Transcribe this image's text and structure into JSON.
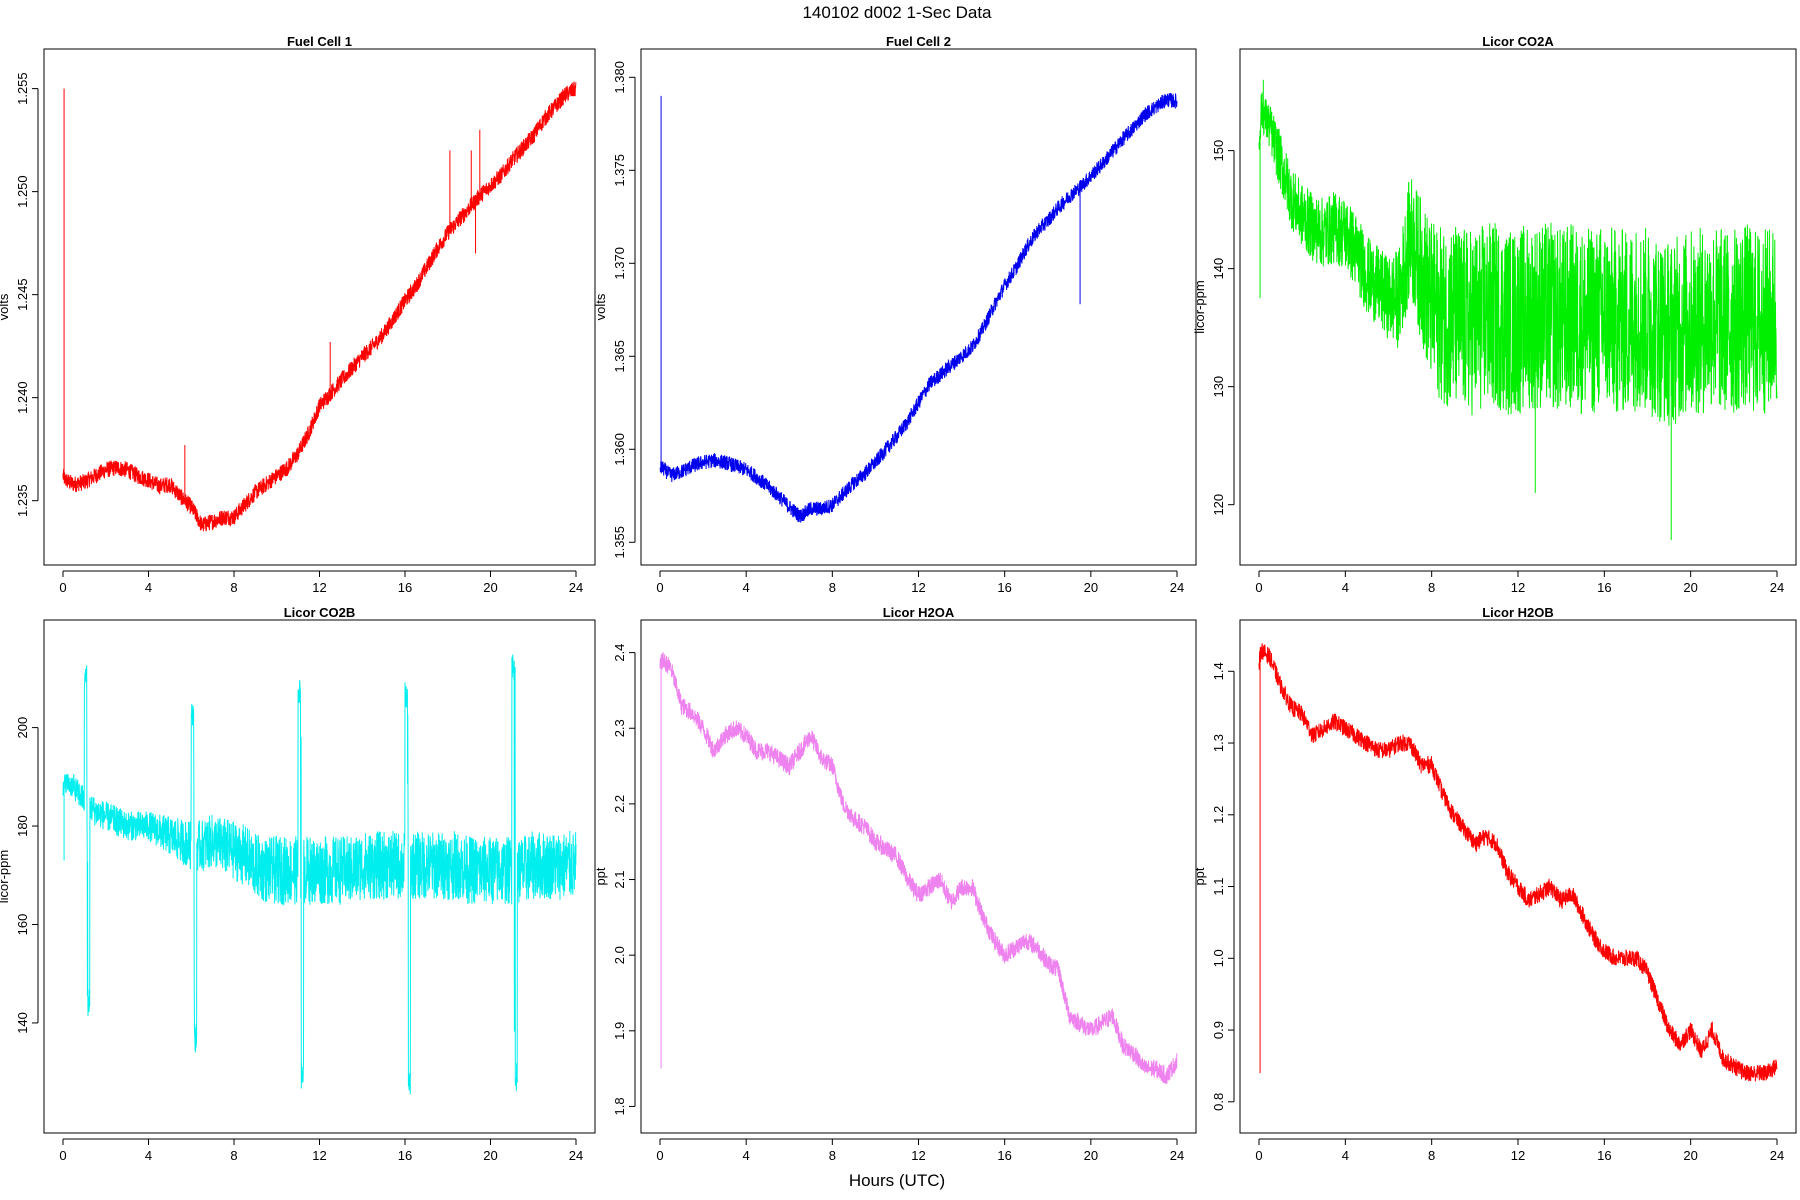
{
  "figure": {
    "title": "140102   d002   1-Sec Data",
    "xlabel": "Hours (UTC)"
  },
  "chart_data": [
    {
      "type": "line",
      "title": "Fuel Cell 1",
      "ylabel": "volts",
      "color": "#ff0000",
      "xlim": [
        0,
        24
      ],
      "ylim": [
        1.2328,
        1.256
      ],
      "xticks": [
        0,
        4,
        8,
        12,
        16,
        20,
        24
      ],
      "yticks": [
        1.235,
        1.24,
        1.245,
        1.25,
        1.255
      ],
      "ytick_labels": [
        "1.235",
        "1.240",
        "1.245",
        "1.250",
        "1.255"
      ],
      "x": [
        0,
        0.1,
        0.5,
        1,
        1.5,
        2,
        2.5,
        3,
        3.5,
        4,
        4.5,
        5,
        5.5,
        6,
        6.5,
        7,
        7.5,
        8,
        8.5,
        9,
        9.5,
        10,
        10.5,
        11,
        11.5,
        12,
        12.5,
        13,
        13.5,
        14,
        14.5,
        15,
        15.5,
        16,
        16.5,
        17,
        17.5,
        18,
        18.5,
        19,
        19.5,
        20,
        20.5,
        21,
        21.5,
        22,
        22.5,
        23,
        23.5,
        24
      ],
      "y": [
        1.2362,
        1.236,
        1.2358,
        1.2359,
        1.2362,
        1.2365,
        1.2366,
        1.2365,
        1.2362,
        1.236,
        1.2357,
        1.2358,
        1.2352,
        1.2347,
        1.2338,
        1.234,
        1.2342,
        1.2342,
        1.2348,
        1.2354,
        1.2358,
        1.2362,
        1.2366,
        1.2373,
        1.2383,
        1.2396,
        1.2402,
        1.2408,
        1.2414,
        1.242,
        1.2425,
        1.2431,
        1.2439,
        1.2447,
        1.2454,
        1.2463,
        1.2472,
        1.248,
        1.2486,
        1.2492,
        1.2498,
        1.2503,
        1.2508,
        1.2515,
        1.2521,
        1.2527,
        1.2535,
        1.2541,
        1.2547,
        1.255
      ],
      "noise": 0.0004,
      "spikes": [
        [
          0.05,
          1.255
        ],
        [
          5.7,
          1.2377
        ],
        [
          12.5,
          1.2427
        ],
        [
          18.1,
          1.252
        ],
        [
          19.1,
          1.252
        ],
        [
          19.5,
          1.253
        ],
        [
          19.3,
          1.247
        ]
      ]
    },
    {
      "type": "line",
      "title": "Fuel Cell 2",
      "ylabel": "volts",
      "color": "#0000ee",
      "xlim": [
        0,
        24
      ],
      "ylim": [
        1.3548,
        1.3805
      ],
      "xticks": [
        0,
        4,
        8,
        12,
        16,
        20,
        24
      ],
      "yticks": [
        1.355,
        1.36,
        1.365,
        1.37,
        1.375,
        1.38
      ],
      "ytick_labels": [
        "1.355",
        "1.360",
        "1.365",
        "1.370",
        "1.375",
        "1.380"
      ],
      "x": [
        0,
        0.1,
        0.5,
        1,
        1.5,
        2,
        2.5,
        3,
        3.5,
        4,
        4.5,
        5,
        5.5,
        6,
        6.5,
        7,
        7.5,
        8,
        8.5,
        9,
        9.5,
        10,
        10.5,
        11,
        11.5,
        12,
        12.5,
        13,
        13.5,
        14,
        14.5,
        15,
        15.5,
        16,
        16.5,
        17,
        17.5,
        18,
        18.5,
        19,
        19.5,
        20,
        20.5,
        21,
        21.5,
        22,
        22.5,
        23,
        23.5,
        24
      ],
      "y": [
        1.359,
        1.359,
        1.3586,
        1.3588,
        1.3591,
        1.3593,
        1.3594,
        1.3593,
        1.3591,
        1.3589,
        1.3585,
        1.358,
        1.3575,
        1.3569,
        1.3564,
        1.3568,
        1.3568,
        1.357,
        1.3576,
        1.3582,
        1.3587,
        1.3593,
        1.36,
        1.3607,
        1.3615,
        1.3625,
        1.3635,
        1.364,
        1.3645,
        1.365,
        1.3655,
        1.3665,
        1.3677,
        1.3688,
        1.3697,
        1.3708,
        1.3717,
        1.3723,
        1.373,
        1.3736,
        1.3741,
        1.3747,
        1.3753,
        1.376,
        1.3767,
        1.3773,
        1.378,
        1.3784,
        1.3788,
        1.3787
      ],
      "noise": 0.0004,
      "spikes": [
        [
          0.05,
          1.379
        ],
        [
          19.5,
          1.3678
        ]
      ]
    },
    {
      "type": "line",
      "title": "Licor CO2A",
      "ylabel": "licor-ppm",
      "color": "#00ee00",
      "xlim": [
        0,
        24
      ],
      "ylim": [
        116.5,
        157.0
      ],
      "xticks": [
        0,
        4,
        8,
        12,
        16,
        20,
        24
      ],
      "yticks": [
        120,
        130,
        140,
        150
      ],
      "ytick_labels": [
        "120",
        "130",
        "140",
        "150"
      ],
      "x": [
        0,
        0.1,
        0.5,
        1,
        1.5,
        2,
        2.5,
        3,
        3.5,
        4,
        4.5,
        5,
        5.5,
        6,
        6.5,
        7,
        7.5,
        8,
        8.5,
        9,
        9.5,
        10,
        10.5,
        11,
        11.5,
        12,
        12.5,
        13,
        13.5,
        14,
        14.5,
        15,
        15.5,
        16,
        16.5,
        17,
        17.5,
        18,
        18.5,
        19,
        19.5,
        20,
        20.5,
        21,
        21.5,
        22,
        22.5,
        23,
        23.5,
        24
      ],
      "y": [
        150,
        153.5,
        152,
        149,
        146,
        144.5,
        143.5,
        143,
        143.5,
        143,
        141.5,
        139.5,
        138.5,
        137.5,
        137.5,
        143,
        140,
        137,
        136,
        136,
        135.5,
        135.5,
        136,
        136,
        135.5,
        135.5,
        136,
        136,
        136,
        135.5,
        136,
        135.5,
        135.5,
        136,
        135.5,
        135.5,
        136,
        135.5,
        135,
        134.5,
        135,
        135.5,
        135.5,
        136,
        135.5,
        135.5,
        136,
        135.5,
        135.5,
        136
      ],
      "noise_profile": [
        [
          0,
          1.5
        ],
        [
          1,
          2.5
        ],
        [
          3,
          3
        ],
        [
          6,
          3.5
        ],
        [
          8,
          7
        ],
        [
          9,
          8
        ],
        [
          24,
          8
        ]
      ],
      "spikes": [
        [
          0.05,
          137.5
        ],
        [
          0.2,
          156
        ],
        [
          19.1,
          117
        ],
        [
          12.8,
          121
        ]
      ]
    },
    {
      "type": "line",
      "title": "Licor CO2B",
      "ylabel": "licor-ppm",
      "color": "#00eeee",
      "xlim": [
        0,
        24
      ],
      "ylim": [
        121.5,
        218.0
      ],
      "xticks": [
        0,
        4,
        8,
        12,
        16,
        20,
        24
      ],
      "yticks": [
        140,
        160,
        180,
        200
      ],
      "ytick_labels": [
        "140",
        "160",
        "180",
        "200"
      ],
      "x": [
        0,
        0.1,
        0.5,
        1,
        1.5,
        2,
        2.5,
        3,
        3.5,
        4,
        4.5,
        5,
        5.5,
        6,
        6.5,
        7,
        7.5,
        8,
        8.5,
        9,
        9.5,
        10,
        10.5,
        11,
        11.5,
        12,
        12.5,
        13,
        13.5,
        14,
        14.5,
        15,
        15.5,
        16,
        16.5,
        17,
        17.5,
        18,
        18.5,
        19,
        19.5,
        20,
        20.5,
        21,
        21.5,
        22,
        22.5,
        23,
        23.5,
        24
      ],
      "y": [
        187,
        189,
        188,
        185,
        183,
        182,
        181,
        180,
        180,
        180,
        179,
        178,
        177,
        176,
        176,
        177,
        176,
        175,
        174,
        172,
        171,
        171,
        171,
        171,
        171,
        171,
        171,
        171,
        171,
        172,
        172,
        172,
        172,
        172,
        172,
        172,
        172,
        172,
        172,
        171,
        171,
        171,
        171,
        171,
        171,
        172,
        172,
        172,
        172,
        172
      ],
      "noise_profile": [
        [
          0,
          2
        ],
        [
          1,
          3
        ],
        [
          4,
          3
        ],
        [
          6,
          5
        ],
        [
          8,
          6
        ],
        [
          10,
          7
        ],
        [
          24,
          7
        ]
      ],
      "calibrations": [
        {
          "x0": 1.0,
          "x1": 1.25,
          "hi": 214,
          "lo": 141
        },
        {
          "x0": 6.0,
          "x1": 6.25,
          "hi": 205,
          "lo": 134
        },
        {
          "x0": 11.0,
          "x1": 11.25,
          "hi": 210,
          "lo": 126
        },
        {
          "x0": 16.0,
          "x1": 16.25,
          "hi": 210,
          "lo": 125
        },
        {
          "x0": 21.0,
          "x1": 21.25,
          "hi": 215,
          "lo": 126
        }
      ],
      "spikes": [
        [
          0.05,
          173
        ]
      ]
    },
    {
      "type": "line",
      "title": "Licor H2OA",
      "ylabel": "ppt",
      "color": "#ee82ee",
      "xlim": [
        0,
        24
      ],
      "ylim": [
        1.79,
        2.418
      ],
      "xticks": [
        0,
        4,
        8,
        12,
        16,
        20,
        24
      ],
      "yticks": [
        1.8,
        1.9,
        2.0,
        2.1,
        2.2,
        2.3,
        2.4
      ],
      "ytick_labels": [
        "1.8",
        "1.9",
        "2.0",
        "2.1",
        "2.2",
        "2.3",
        "2.4"
      ],
      "x": [
        0,
        0.1,
        0.5,
        1,
        1.5,
        2,
        2.5,
        3,
        3.5,
        4,
        4.5,
        5,
        5.5,
        6,
        6.5,
        7,
        7.5,
        8,
        8.5,
        9,
        9.5,
        10,
        10.5,
        11,
        11.5,
        12,
        12.5,
        13,
        13.5,
        14,
        14.5,
        15,
        15.5,
        16,
        16.5,
        17,
        17.5,
        18,
        18.5,
        19,
        19.5,
        20,
        20.5,
        21,
        21.5,
        22,
        22.5,
        23,
        23.5,
        24
      ],
      "y": [
        2.38,
        2.39,
        2.38,
        2.33,
        2.32,
        2.3,
        2.27,
        2.29,
        2.3,
        2.29,
        2.27,
        2.27,
        2.26,
        2.25,
        2.27,
        2.29,
        2.26,
        2.25,
        2.2,
        2.18,
        2.17,
        2.15,
        2.14,
        2.13,
        2.1,
        2.08,
        2.09,
        2.1,
        2.07,
        2.09,
        2.09,
        2.05,
        2.02,
        2.0,
        2.01,
        2.02,
        2.01,
        1.99,
        1.98,
        1.92,
        1.91,
        1.9,
        1.91,
        1.92,
        1.88,
        1.87,
        1.85,
        1.85,
        1.84,
        1.86
      ],
      "noise": 0.012,
      "spikes": [
        [
          0.05,
          1.85
        ]
      ]
    },
    {
      "type": "line",
      "title": "Licor H2OB",
      "ylabel": "ppt",
      "color": "#ff0000",
      "xlim": [
        0,
        24
      ],
      "ylim": [
        0.783,
        1.445
      ],
      "xticks": [
        0,
        4,
        8,
        12,
        16,
        20,
        24
      ],
      "yticks": [
        0.8,
        0.9,
        1.0,
        1.1,
        1.2,
        1.3,
        1.4
      ],
      "ytick_labels": [
        "0.8",
        "0.9",
        "1.0",
        "1.1",
        "1.2",
        "1.3",
        "1.4"
      ],
      "x": [
        0,
        0.1,
        0.5,
        1,
        1.5,
        2,
        2.5,
        3,
        3.5,
        4,
        4.5,
        5,
        5.5,
        6,
        6.5,
        7,
        7.5,
        8,
        8.5,
        9,
        9.5,
        10,
        10.5,
        11,
        11.5,
        12,
        12.5,
        13,
        13.5,
        14,
        14.5,
        15,
        15.5,
        16,
        16.5,
        17,
        17.5,
        18,
        18.5,
        19,
        19.5,
        20,
        20.5,
        21,
        21.5,
        22,
        22.5,
        23,
        23.5,
        24
      ],
      "y": [
        1.41,
        1.43,
        1.42,
        1.38,
        1.35,
        1.34,
        1.31,
        1.32,
        1.33,
        1.32,
        1.31,
        1.3,
        1.29,
        1.29,
        1.3,
        1.3,
        1.27,
        1.27,
        1.23,
        1.2,
        1.18,
        1.16,
        1.17,
        1.16,
        1.12,
        1.1,
        1.08,
        1.09,
        1.1,
        1.08,
        1.09,
        1.06,
        1.03,
        1.01,
        1.0,
        1.0,
        1.0,
        0.98,
        0.94,
        0.9,
        0.88,
        0.9,
        0.87,
        0.9,
        0.86,
        0.85,
        0.84,
        0.84,
        0.84,
        0.85
      ],
      "noise": 0.012,
      "spikes": [
        [
          0.05,
          0.84
        ]
      ]
    }
  ]
}
